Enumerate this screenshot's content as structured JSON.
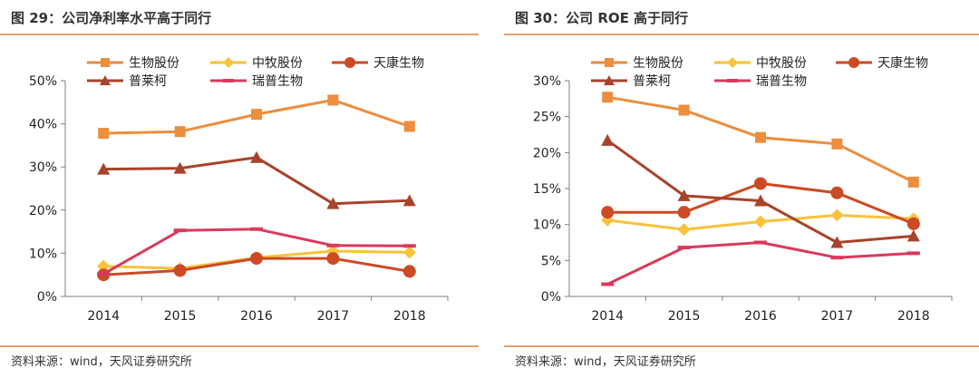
{
  "footer": {
    "source_left": "资料来源：wind，天风证券研究所",
    "source_right": "资料来源：wind，天风证券研究所"
  },
  "chart_data": [
    {
      "type": "line",
      "title": "图 29：公司净利率水平高于同行",
      "categories": [
        "2014",
        "2015",
        "2016",
        "2017",
        "2018"
      ],
      "ylim": [
        0,
        50
      ],
      "yticks": [
        "0%",
        "10%",
        "20%",
        "30%",
        "40%",
        "50%"
      ],
      "legend_position": "top",
      "grid": false,
      "series": [
        {
          "name": "生物股份",
          "color": "#ed8d3e",
          "marker": "square",
          "values": [
            37.8,
            38.2,
            42.2,
            45.5,
            39.4
          ]
        },
        {
          "name": "中牧股份",
          "color": "#f9c23c",
          "marker": "diamond",
          "values": [
            7.0,
            6.5,
            9.0,
            10.5,
            10.2
          ]
        },
        {
          "name": "天康生物",
          "color": "#cc4a24",
          "marker": "circle",
          "values": [
            5.0,
            6.0,
            8.8,
            8.8,
            5.8
          ]
        },
        {
          "name": "普莱柯",
          "color": "#a8432b",
          "marker": "triangle",
          "values": [
            29.5,
            29.7,
            32.2,
            21.5,
            22.2
          ]
        },
        {
          "name": "瑞普生物",
          "color": "#d93a5c",
          "marker": "dash",
          "values": [
            5.2,
            15.3,
            15.6,
            11.8,
            11.7
          ]
        }
      ]
    },
    {
      "type": "line",
      "title": "图 30：公司 ROE 高于同行",
      "categories": [
        "2014",
        "2015",
        "2016",
        "2017",
        "2018"
      ],
      "ylim": [
        0,
        30
      ],
      "yticks": [
        "0%",
        "5%",
        "10%",
        "15%",
        "20%",
        "25%",
        "30%"
      ],
      "legend_position": "top",
      "grid": false,
      "series": [
        {
          "name": "生物股份",
          "color": "#ed8d3e",
          "marker": "square",
          "values": [
            27.7,
            25.9,
            22.1,
            21.2,
            15.9
          ]
        },
        {
          "name": "中牧股份",
          "color": "#f9c23c",
          "marker": "diamond",
          "values": [
            10.6,
            9.3,
            10.4,
            11.3,
            10.8
          ]
        },
        {
          "name": "天康生物",
          "color": "#cc4a24",
          "marker": "circle",
          "values": [
            11.7,
            11.7,
            15.7,
            14.4,
            10.1
          ]
        },
        {
          "name": "普莱柯",
          "color": "#a8432b",
          "marker": "triangle",
          "values": [
            21.7,
            14.0,
            13.3,
            7.5,
            8.4
          ]
        },
        {
          "name": "瑞普生物",
          "color": "#d93a5c",
          "marker": "dash",
          "values": [
            1.7,
            6.8,
            7.5,
            5.4,
            6.0
          ]
        }
      ]
    }
  ]
}
